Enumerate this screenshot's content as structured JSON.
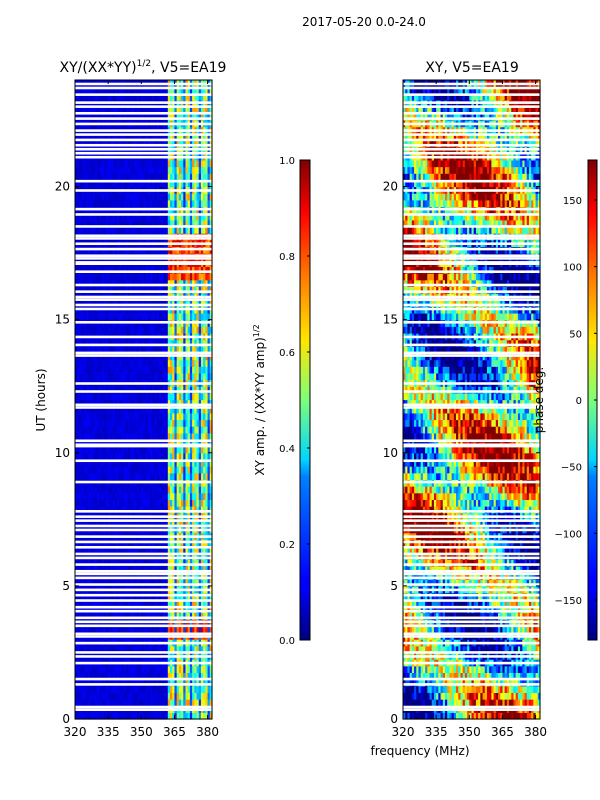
{
  "figure": {
    "suptitle": "2017-05-20 0.0-24.0",
    "xlabel": "frequency (MHz)"
  },
  "chart_data": [
    {
      "type": "heatmap",
      "title_main": "XY/(XX*YY)",
      "title_sup": "1/2",
      "title_rest": ", V5=EA19",
      "ylabel": "UT (hours)",
      "xlim": [
        320,
        382
      ],
      "ylim": [
        0,
        24
      ],
      "x_ticks": [
        320,
        335,
        350,
        365,
        380
      ],
      "y_ticks": [
        0,
        5,
        10,
        15,
        20
      ],
      "value_range": [
        0.0,
        1.0
      ],
      "colormap": "jet",
      "colorbar": {
        "label_main": "XY amp. / (XX*YY amp)",
        "label_sup": "1/2",
        "ticks": [
          0.0,
          0.2,
          0.4,
          0.6,
          0.8,
          1.0
        ],
        "tick_labels": [
          "0.0",
          "0.2",
          "0.4",
          "0.6",
          "0.8",
          "1.0"
        ]
      }
    },
    {
      "type": "heatmap",
      "title": "XY, V5=EA19",
      "xlim": [
        320,
        382
      ],
      "ylim": [
        0,
        24
      ],
      "x_ticks": [
        320,
        335,
        350,
        365,
        380
      ],
      "y_ticks": [
        0,
        5,
        10,
        15,
        20
      ],
      "value_range": [
        -180,
        180
      ],
      "colormap": "jet",
      "colorbar": {
        "label": "phase deg.",
        "ticks": [
          -150,
          -100,
          -50,
          0,
          50,
          100,
          150
        ],
        "tick_labels": [
          "−150",
          "−100",
          "−50",
          "0",
          "50",
          "100",
          "150"
        ]
      }
    }
  ],
  "flagged_hours": [
    0.35,
    0.45,
    1.3,
    1.5,
    2.1,
    2.35,
    2.5,
    2.85,
    3.1,
    3.2,
    3.5,
    3.65,
    3.8,
    4.05,
    4.2,
    4.45,
    4.65,
    4.85,
    5.05,
    5.3,
    5.45,
    5.55,
    5.8,
    6.05,
    6.2,
    6.45,
    6.65,
    6.85,
    7.1,
    7.25,
    7.45,
    7.6,
    7.8,
    8.9,
    9.7,
    10.25,
    10.3,
    10.45,
    11.7,
    11.8,
    12.3,
    12.6,
    13.65,
    13.75,
    14.05,
    14.35,
    14.9,
    15.4,
    15.55,
    15.75,
    15.85,
    16.05,
    16.3,
    16.8,
    17.1,
    17.15,
    17.3,
    17.4,
    17.65,
    17.85,
    18.05,
    18.15,
    18.5,
    18.95,
    19.15,
    19.85,
    20.2,
    21.1,
    21.25,
    21.4,
    21.55,
    21.75,
    21.95,
    22.1,
    22.35,
    22.55,
    22.75,
    23.0,
    23.15,
    23.45,
    23.7,
    23.85
  ]
}
